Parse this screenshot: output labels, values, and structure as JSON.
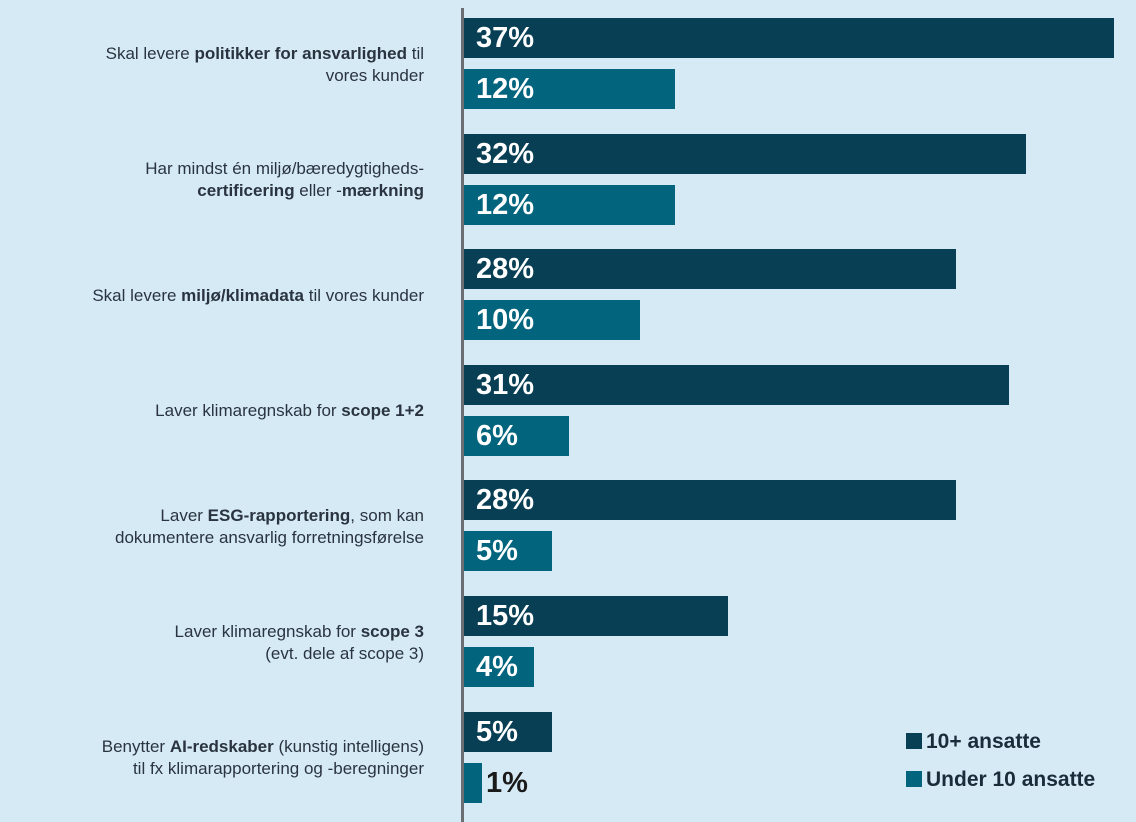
{
  "chart_data": {
    "type": "bar",
    "orientation": "horizontal",
    "categories": [
      "Skal levere politikker for ansvarlighed til vores kunder",
      "Har mindst én miljø/bæredygtigheds-certificering eller -mærkning",
      "Skal levere miljø/klimadata til vores kunder",
      "Laver klimaregnskab for scope 1+2",
      "Laver ESG-rapportering, som kan dokumentere ansvarlig forretningsførelse",
      "Laver klimaregnskab for scope 3 (evt. dele af scope 3)",
      "Benytter AI-redskaber (kunstig intelligens) til fx klimarapportering og -beregninger"
    ],
    "category_labels": [
      [
        {
          "t": "Skal levere ",
          "b": false
        },
        {
          "t": "politikker for ansvarlighed",
          "b": true
        },
        {
          "t": " til",
          "b": false
        },
        {
          "t": "\n",
          "b": false
        },
        {
          "t": "vores kunder",
          "b": false
        }
      ],
      [
        {
          "t": "Har mindst én miljø/bæredygtigheds-",
          "b": false
        },
        {
          "t": "\n",
          "b": false
        },
        {
          "t": "certificering",
          "b": true
        },
        {
          "t": " eller -",
          "b": false
        },
        {
          "t": "mærkning",
          "b": true
        }
      ],
      [
        {
          "t": "Skal levere ",
          "b": false
        },
        {
          "t": "miljø/klimadata",
          "b": true
        },
        {
          "t": " til vores kunder",
          "b": false
        }
      ],
      [
        {
          "t": "Laver klimaregnskab for ",
          "b": false
        },
        {
          "t": "scope 1+2",
          "b": true
        }
      ],
      [
        {
          "t": "Laver ",
          "b": false
        },
        {
          "t": "ESG-rapportering",
          "b": true
        },
        {
          "t": ", som kan",
          "b": false
        },
        {
          "t": "\n",
          "b": false
        },
        {
          "t": "dokumentere ansvarlig forretningsførelse",
          "b": false
        }
      ],
      [
        {
          "t": "Laver klimaregnskab for ",
          "b": false
        },
        {
          "t": "scope 3",
          "b": true
        },
        {
          "t": "\n",
          "b": false
        },
        {
          "t": "(evt. dele af scope 3)",
          "b": false
        }
      ],
      [
        {
          "t": "Benytter ",
          "b": false
        },
        {
          "t": "AI-redskaber",
          "b": true
        },
        {
          "t": " (kunstig intelligens)",
          "b": false
        },
        {
          "t": "\n",
          "b": false
        },
        {
          "t": "til fx klimarapportering og -beregninger",
          "b": false
        }
      ]
    ],
    "series": [
      {
        "name": "10+ ansatte",
        "color": "#083f55",
        "values": [
          37,
          32,
          28,
          31,
          28,
          15,
          5
        ],
        "labels": [
          "37%",
          "32%",
          "28%",
          "31%",
          "28%",
          "15%",
          "5%"
        ]
      },
      {
        "name": "Under 10 ansatte",
        "color": "#03647e",
        "values": [
          12,
          12,
          10,
          6,
          5,
          4,
          1
        ],
        "labels": [
          "12%",
          "12%",
          "10%",
          "6%",
          "5%",
          "4%",
          "1%"
        ]
      }
    ],
    "xlim": [
      0,
      37
    ],
    "grid": false,
    "legend_position": "bottom-right"
  }
}
